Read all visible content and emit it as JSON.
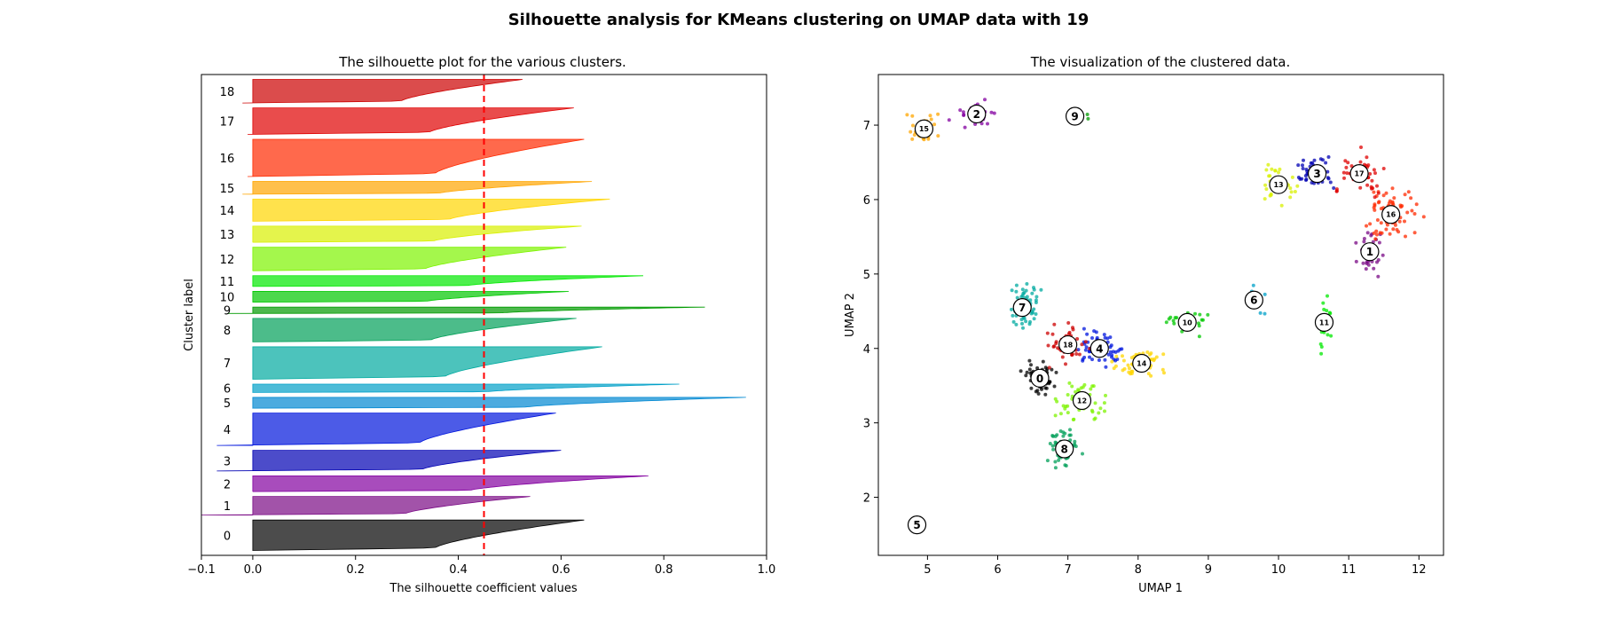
{
  "figure": {
    "suptitle": "Silhouette analysis for KMeans clustering on UMAP data with 19"
  },
  "chart_data": [
    {
      "type": "area",
      "title": "The silhouette plot for the various clusters.",
      "xlabel": "The silhouette coefficient values",
      "ylabel": "Cluster label",
      "xlim": [
        -0.1,
        1.0
      ],
      "xticks": [
        -0.1,
        0.0,
        0.2,
        0.4,
        0.6,
        0.8,
        1.0
      ],
      "xtick_labels": [
        "−0.1",
        "0.0",
        "0.2",
        "0.4",
        "0.6",
        "0.8",
        "1.0"
      ],
      "grid": false,
      "average_silhouette": 0.45,
      "average_line_color": "#ff0000",
      "clusters": [
        {
          "label": "0",
          "size": 62,
          "max": 0.645,
          "min": 0.0,
          "color": "#000000"
        },
        {
          "label": "1",
          "size": 38,
          "max": 0.54,
          "min": -0.1,
          "color": "#7a0a85"
        },
        {
          "label": "2",
          "size": 32,
          "max": 0.77,
          "min": 0.0,
          "color": "#8300a0"
        },
        {
          "label": "3",
          "size": 42,
          "max": 0.6,
          "min": -0.07,
          "color": "#0000b3"
        },
        {
          "label": "4",
          "size": 66,
          "max": 0.59,
          "min": -0.07,
          "color": "#0015dd"
        },
        {
          "label": "5",
          "size": 22,
          "max": 0.96,
          "min": 0.0,
          "color": "#0088d2"
        },
        {
          "label": "6",
          "size": 17,
          "max": 0.83,
          "min": 0.0,
          "color": "#00a0c8"
        },
        {
          "label": "7",
          "size": 66,
          "max": 0.68,
          "min": 0.0,
          "color": "#00aaa0"
        },
        {
          "label": "8",
          "size": 48,
          "max": 0.63,
          "min": 0.0,
          "color": "#009f58"
        },
        {
          "label": "9",
          "size": 13,
          "max": 0.88,
          "min": -0.05,
          "color": "#009a00"
        },
        {
          "label": "10",
          "size": 22,
          "max": 0.615,
          "min": 0.0,
          "color": "#00c800"
        },
        {
          "label": "11",
          "size": 22,
          "max": 0.76,
          "min": 0.0,
          "color": "#00e800"
        },
        {
          "label": "12",
          "size": 48,
          "max": 0.61,
          "min": 0.0,
          "color": "#7ef300"
        },
        {
          "label": "13",
          "size": 33,
          "max": 0.64,
          "min": 0.0,
          "color": "#d8f000"
        },
        {
          "label": "14",
          "size": 45,
          "max": 0.695,
          "min": 0.0,
          "color": "#ffd600"
        },
        {
          "label": "15",
          "size": 26,
          "max": 0.66,
          "min": -0.02,
          "color": "#ffa500"
        },
        {
          "label": "16",
          "size": 76,
          "max": 0.645,
          "min": -0.01,
          "color": "#ff2a00"
        },
        {
          "label": "17",
          "size": 54,
          "max": 0.625,
          "min": -0.01,
          "color": "#df0000"
        },
        {
          "label": "18",
          "size": 48,
          "max": 0.525,
          "min": -0.02,
          "color": "#cc0000"
        }
      ]
    },
    {
      "type": "scatter",
      "title": "The visualization of the clustered data.",
      "xlabel": "UMAP 1",
      "ylabel": "UMAP 2",
      "xlim": [
        4.3,
        12.35
      ],
      "ylim": [
        1.22,
        7.68
      ],
      "xticks": [
        5,
        6,
        7,
        8,
        9,
        10,
        11,
        12
      ],
      "yticks": [
        2,
        3,
        4,
        5,
        6,
        7
      ],
      "grid": false,
      "clusters": [
        {
          "label": "0",
          "center": [
            6.6,
            3.6
          ],
          "spread": [
            0.17,
            0.17
          ],
          "n": 62,
          "color": "#000000"
        },
        {
          "label": "1",
          "center": [
            11.3,
            5.3
          ],
          "spread": [
            0.15,
            0.22
          ],
          "n": 38,
          "color": "#7a0a85"
        },
        {
          "label": "2",
          "center": [
            5.7,
            7.15
          ],
          "spread": [
            0.25,
            0.13
          ],
          "n": 32,
          "color": "#8300a0"
        },
        {
          "label": "3",
          "center": [
            10.55,
            6.35
          ],
          "spread": [
            0.25,
            0.15
          ],
          "n": 42,
          "color": "#0000b3"
        },
        {
          "label": "4",
          "center": [
            7.45,
            4.0
          ],
          "spread": [
            0.25,
            0.17
          ],
          "n": 66,
          "color": "#0015dd"
        },
        {
          "label": "5",
          "center": [
            4.85,
            1.63
          ],
          "spread": [
            0.05,
            0.05
          ],
          "n": 22,
          "color": "#0088d2"
        },
        {
          "label": "6",
          "center": [
            9.65,
            4.65
          ],
          "spread": [
            0.12,
            0.15
          ],
          "n": 17,
          "color": "#00a0c8"
        },
        {
          "label": "7",
          "center": [
            6.35,
            4.55
          ],
          "spread": [
            0.18,
            0.25
          ],
          "n": 66,
          "color": "#00aaa0"
        },
        {
          "label": "8",
          "center": [
            6.95,
            2.65
          ],
          "spread": [
            0.17,
            0.22
          ],
          "n": 48,
          "color": "#009f58"
        },
        {
          "label": "9",
          "center": [
            7.1,
            7.12
          ],
          "spread": [
            0.2,
            0.04
          ],
          "n": 13,
          "color": "#009a00"
        },
        {
          "label": "10",
          "center": [
            8.7,
            4.35
          ],
          "spread": [
            0.35,
            0.15
          ],
          "n": 22,
          "color": "#00c800"
        },
        {
          "label": "11",
          "center": [
            10.65,
            4.35
          ],
          "spread": [
            0.07,
            0.3
          ],
          "n": 22,
          "color": "#00e800"
        },
        {
          "label": "12",
          "center": [
            7.2,
            3.3
          ],
          "spread": [
            0.25,
            0.25
          ],
          "n": 48,
          "color": "#7ef300"
        },
        {
          "label": "13",
          "center": [
            10.0,
            6.2
          ],
          "spread": [
            0.2,
            0.25
          ],
          "n": 33,
          "color": "#d8f000"
        },
        {
          "label": "14",
          "center": [
            8.05,
            3.8
          ],
          "spread": [
            0.35,
            0.18
          ],
          "n": 45,
          "color": "#ffd600"
        },
        {
          "label": "15",
          "center": [
            4.95,
            6.95
          ],
          "spread": [
            0.2,
            0.2
          ],
          "n": 26,
          "color": "#ffa500"
        },
        {
          "label": "16",
          "center": [
            11.6,
            5.8
          ],
          "spread": [
            0.3,
            0.3
          ],
          "n": 76,
          "color": "#ff2a00"
        },
        {
          "label": "17",
          "center": [
            11.15,
            6.35
          ],
          "spread": [
            0.3,
            0.2
          ],
          "n": 54,
          "color": "#df0000"
        },
        {
          "label": "18",
          "center": [
            7.0,
            4.05
          ],
          "spread": [
            0.25,
            0.2
          ],
          "n": 48,
          "color": "#cc0000"
        }
      ]
    }
  ]
}
